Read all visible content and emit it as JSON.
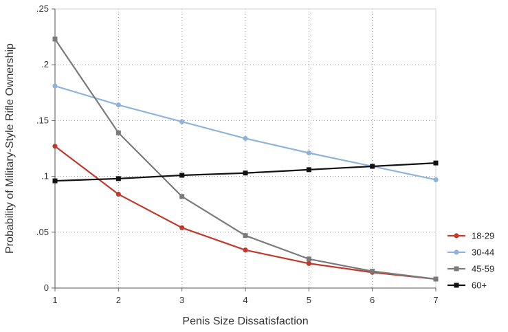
{
  "chart_data": {
    "type": "line",
    "title": "",
    "xlabel": "Penis Size Dissatisfaction",
    "ylabel": "Probability of Military-Style Rifle Ownership",
    "x": [
      1,
      2,
      3,
      4,
      5,
      6,
      7
    ],
    "xlim": [
      1,
      7
    ],
    "ylim": [
      0,
      0.25
    ],
    "x_ticks": [
      "1",
      "2",
      "3",
      "4",
      "5",
      "6",
      "7"
    ],
    "y_ticks": [
      {
        "value": 0,
        "label": "0"
      },
      {
        "value": 0.05,
        "label": ".05"
      },
      {
        "value": 0.1,
        "label": ".1"
      },
      {
        "value": 0.15,
        "label": ".15"
      },
      {
        "value": 0.2,
        "label": ".2"
      },
      {
        "value": 0.25,
        "label": ".25"
      }
    ],
    "grid": true,
    "legend_position": "right",
    "series": [
      {
        "name": "18-29",
        "color": "#c0392b",
        "marker": "circle",
        "values": [
          0.127,
          0.084,
          0.054,
          0.034,
          0.022,
          0.014,
          0.008
        ]
      },
      {
        "name": "30-44",
        "color": "#8fb3d9",
        "marker": "circle",
        "values": [
          0.181,
          0.164,
          0.149,
          0.134,
          0.121,
          0.109,
          0.097
        ]
      },
      {
        "name": "45-59",
        "color": "#7a7a7a",
        "marker": "square",
        "values": [
          0.223,
          0.139,
          0.082,
          0.047,
          0.026,
          0.015,
          0.008
        ]
      },
      {
        "name": "60+",
        "color": "#111111",
        "marker": "square",
        "values": [
          0.096,
          0.098,
          0.101,
          0.103,
          0.106,
          0.109,
          0.112
        ]
      }
    ]
  }
}
